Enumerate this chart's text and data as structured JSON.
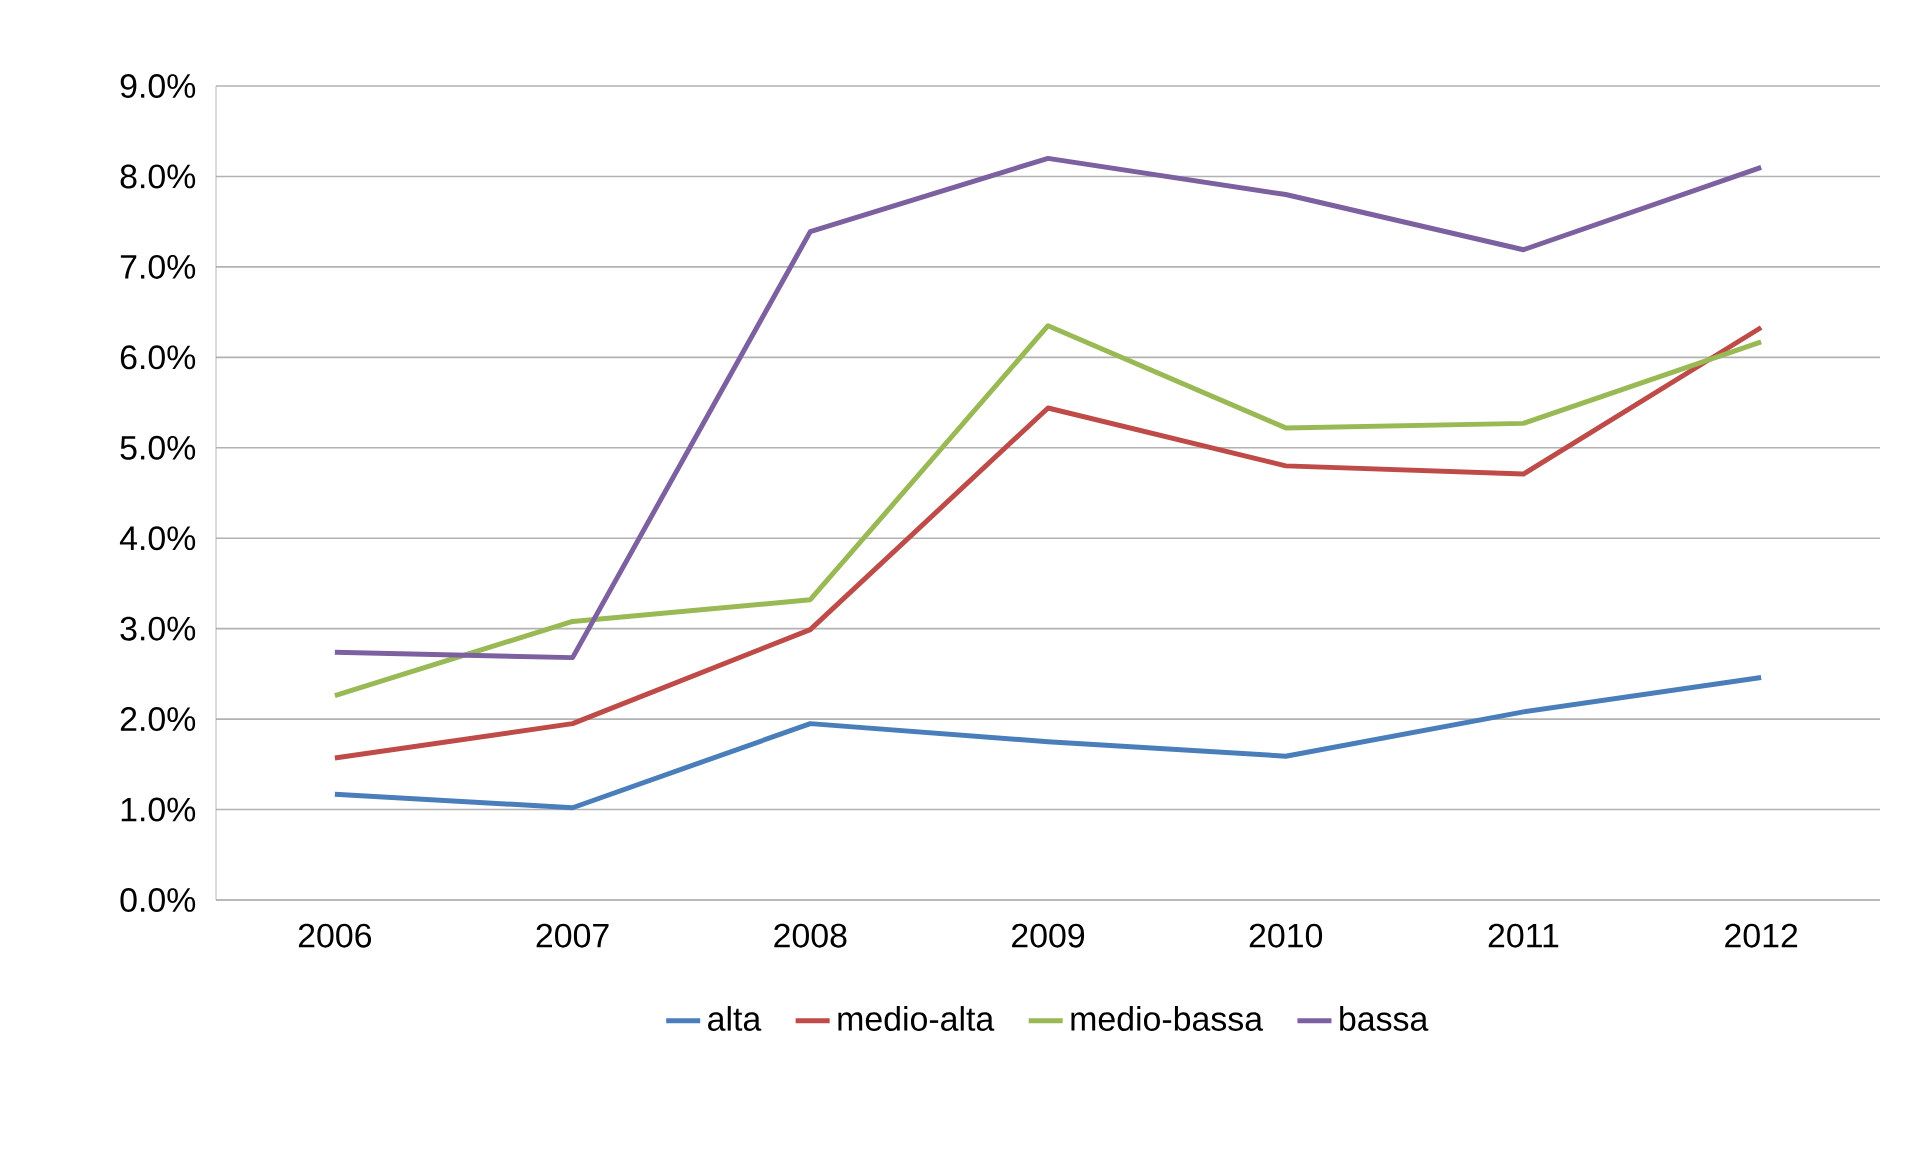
{
  "chart_data": {
    "type": "line",
    "categories": [
      "2006",
      "2007",
      "2008",
      "2009",
      "2010",
      "2011",
      "2012"
    ],
    "series": [
      {
        "name": "alta",
        "color": "#4a7ebb",
        "values": [
          1.17,
          1.02,
          1.95,
          1.75,
          1.59,
          2.08,
          2.46
        ]
      },
      {
        "name": "medio-alta",
        "color": "#be4b48",
        "values": [
          1.57,
          1.95,
          2.99,
          5.44,
          4.8,
          4.71,
          6.33
        ]
      },
      {
        "name": "medio-bassa",
        "color": "#98b954",
        "values": [
          2.26,
          3.08,
          3.32,
          6.35,
          5.22,
          5.27,
          6.17
        ]
      },
      {
        "name": "bassa",
        "color": "#7d60a0",
        "values": [
          2.74,
          2.68,
          7.39,
          8.2,
          7.8,
          7.19,
          8.1
        ]
      }
    ],
    "ylim": [
      0,
      9
    ],
    "yticks": [
      {
        "value": 0,
        "label": "0.0%"
      },
      {
        "value": 1,
        "label": "1.0%"
      },
      {
        "value": 2,
        "label": "2.0%"
      },
      {
        "value": 3,
        "label": "3.0%"
      },
      {
        "value": 4,
        "label": "4.0%"
      },
      {
        "value": 5,
        "label": "5.0%"
      },
      {
        "value": 6,
        "label": "6.0%"
      },
      {
        "value": 7,
        "label": "7.0%"
      },
      {
        "value": 8,
        "label": "8.0%"
      },
      {
        "value": 9,
        "label": "9.0%"
      }
    ],
    "grid": "y",
    "legend": "bottom"
  }
}
